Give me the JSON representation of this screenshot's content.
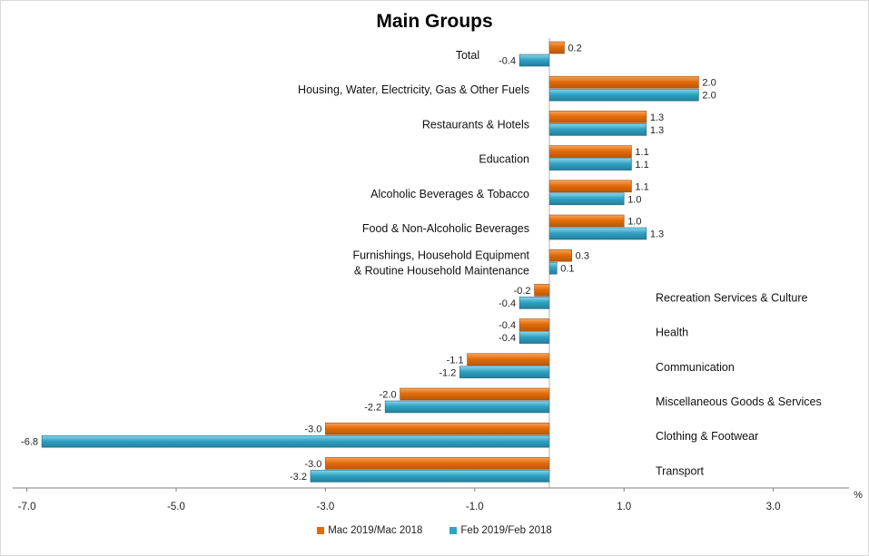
{
  "chart_data": {
    "type": "bar",
    "orientation": "horizontal",
    "title": "Main Groups",
    "xlabel": "%",
    "xlim": [
      -7.0,
      4.0
    ],
    "xticks": [
      "-7.0",
      "-5.0",
      "-3.0",
      "-1.0",
      "1.0",
      "3.0"
    ],
    "xtick_values": [
      -7,
      -5,
      -3,
      -1,
      1,
      3
    ],
    "grid": false,
    "legend_position": "bottom",
    "categories": [
      [
        "Total"
      ],
      [
        "Housing, Water, Electricity, Gas & Other Fuels"
      ],
      [
        "Restaurants & Hotels"
      ],
      [
        "Education"
      ],
      [
        "Alcoholic Beverages  & Tobacco"
      ],
      [
        "Food &  Non-Alcoholic Beverages"
      ],
      [
        "Furnishings, Household Equipment",
        "& Routine Household Maintenance"
      ],
      [
        "Recreation Services & Culture"
      ],
      [
        "Health"
      ],
      [
        "Communication"
      ],
      [
        "Miscellaneous Goods & Services"
      ],
      [
        "Clothing & Footwear"
      ],
      [
        "Transport"
      ]
    ],
    "series": [
      {
        "name": "Mac 2019/Mac 2018",
        "color": "#E36C0A",
        "values": [
          0.2,
          2.0,
          1.3,
          1.1,
          1.1,
          1.0,
          0.3,
          -0.2,
          -0.4,
          -1.1,
          -2.0,
          -3.0,
          -3.0
        ],
        "labels": [
          "0.2",
          "2.0",
          "1.3",
          "1.1",
          "1.1",
          "1.0",
          "0.3",
          "-0.2",
          "-0.4",
          "-1.1",
          "-2.0",
          "-3.0",
          "-3.0"
        ]
      },
      {
        "name": "Feb 2019/Feb 2018",
        "color": "#31A3C4",
        "values": [
          -0.4,
          2.0,
          1.3,
          1.1,
          1.0,
          1.3,
          0.1,
          -0.4,
          -0.4,
          -1.2,
          -2.2,
          -6.8,
          -3.2
        ],
        "labels": [
          "-0.4",
          "2.0",
          "1.3",
          "1.1",
          "1.0",
          "1.3",
          "0.1",
          "-0.4",
          "-0.4",
          "-1.2",
          "-2.2",
          "-6.8",
          "-3.2"
        ]
      }
    ]
  }
}
